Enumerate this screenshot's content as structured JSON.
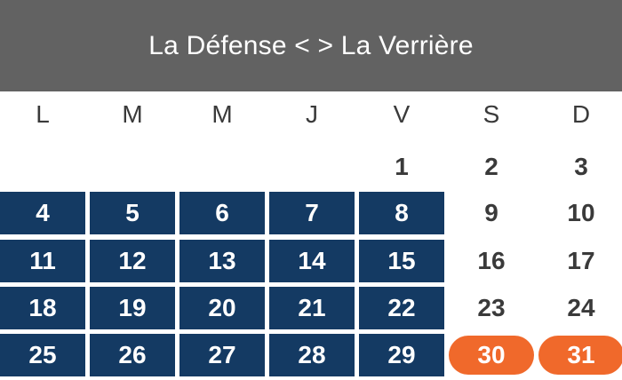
{
  "header": {
    "title": "La Défense < > La Verrière"
  },
  "calendar": {
    "weekdays": [
      "L",
      "M",
      "M",
      "J",
      "V",
      "S",
      "D"
    ],
    "colors": {
      "workday": "#143a63",
      "holiday": "#f0692b",
      "header": "#626262"
    },
    "weeks": [
      [
        {
          "day": "",
          "type": "empty"
        },
        {
          "day": "",
          "type": "empty"
        },
        {
          "day": "",
          "type": "empty"
        },
        {
          "day": "",
          "type": "empty"
        },
        {
          "day": "1",
          "type": "plain"
        },
        {
          "day": "2",
          "type": "plain"
        },
        {
          "day": "3",
          "type": "plain"
        }
      ],
      [
        {
          "day": "4",
          "type": "work"
        },
        {
          "day": "5",
          "type": "work"
        },
        {
          "day": "6",
          "type": "work"
        },
        {
          "day": "7",
          "type": "work"
        },
        {
          "day": "8",
          "type": "work"
        },
        {
          "day": "9",
          "type": "plain"
        },
        {
          "day": "10",
          "type": "plain"
        }
      ],
      [
        {
          "day": "11",
          "type": "work"
        },
        {
          "day": "12",
          "type": "work"
        },
        {
          "day": "13",
          "type": "work"
        },
        {
          "day": "14",
          "type": "work"
        },
        {
          "day": "15",
          "type": "work"
        },
        {
          "day": "16",
          "type": "plain"
        },
        {
          "day": "17",
          "type": "plain"
        }
      ],
      [
        {
          "day": "18",
          "type": "work"
        },
        {
          "day": "19",
          "type": "work"
        },
        {
          "day": "20",
          "type": "work"
        },
        {
          "day": "21",
          "type": "work"
        },
        {
          "day": "22",
          "type": "work"
        },
        {
          "day": "23",
          "type": "plain"
        },
        {
          "day": "24",
          "type": "plain"
        }
      ],
      [
        {
          "day": "25",
          "type": "work"
        },
        {
          "day": "26",
          "type": "work"
        },
        {
          "day": "27",
          "type": "work"
        },
        {
          "day": "28",
          "type": "work"
        },
        {
          "day": "29",
          "type": "work"
        },
        {
          "day": "30",
          "type": "holiday"
        },
        {
          "day": "31",
          "type": "holiday"
        }
      ]
    ]
  }
}
